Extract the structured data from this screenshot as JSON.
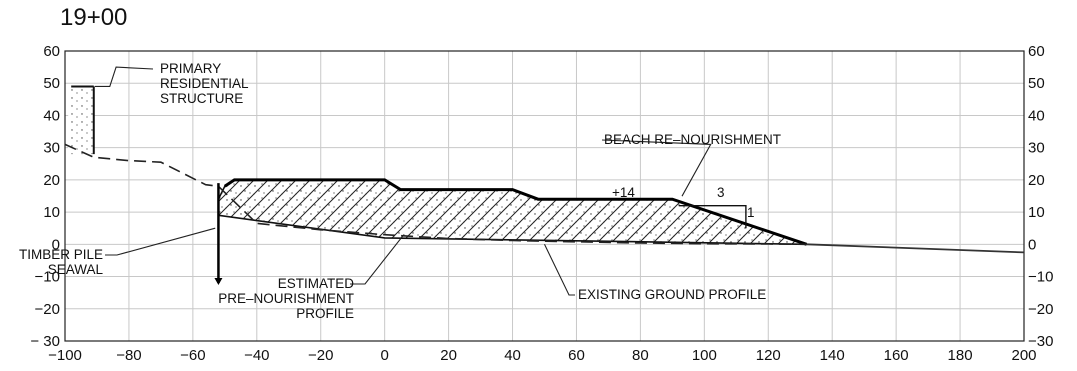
{
  "station_label": "19+00",
  "chart_data": {
    "type": "line",
    "title": "19+00",
    "xlim": [
      -100,
      200
    ],
    "ylim": [
      -30,
      60
    ],
    "x_ticks": [
      "−100",
      "−80",
      "−60",
      "−40",
      "−20",
      "0",
      "20",
      "40",
      "60",
      "80",
      "100",
      "120",
      "140",
      "160",
      "180",
      "200"
    ],
    "y_ticks_left": [
      "60",
      "50",
      "40",
      "30",
      "20",
      "10",
      "0",
      "−10",
      "−20",
      "− 30"
    ],
    "y_ticks_right": [
      "60",
      "50",
      "40",
      "30",
      "20",
      "10",
      "0",
      "−10",
      "−20",
      "−30"
    ],
    "grid": true,
    "series": [
      {
        "name": "EXISTING GROUND PROFILE",
        "style": "solid",
        "x": [
          132,
          200
        ],
        "y": [
          0,
          -2.5
        ]
      },
      {
        "name": "ESTIMATED PRE-NOURISHMENT PROFILE",
        "style": "dashed",
        "x": [
          -100,
          -91,
          -80,
          -70,
          -60,
          -56,
          -52,
          -40,
          -20,
          0,
          20,
          40,
          60,
          80,
          100,
          120,
          132
        ],
        "y": [
          31,
          27,
          26,
          25.5,
          20.5,
          18.5,
          18,
          6.5,
          4.5,
          3,
          1.8,
          1.2,
          0.8,
          0.4,
          0.2,
          0.1,
          0
        ]
      },
      {
        "name": "BEACH RE-NOURISHMENT",
        "style": "hatched",
        "x": [
          -52,
          -50,
          -47,
          0,
          5,
          40,
          48,
          90,
          132,
          0,
          -52
        ],
        "y": [
          14,
          18,
          20,
          20,
          17,
          17,
          14,
          14,
          0,
          2,
          9
        ]
      },
      {
        "name": "TIMBER PILE SEAWAL",
        "style": "pile",
        "x": [
          -52,
          -52
        ],
        "y": [
          19,
          -12
        ]
      },
      {
        "name": "PRIMARY RESIDENTIAL STRUCTURE",
        "style": "structure",
        "x": [
          -99,
          -91
        ],
        "y": [
          49,
          28
        ]
      }
    ],
    "annotations": {
      "primary_structure": "PRIMARY\nRESIDENTIAL\nSTRUCTURE",
      "beach_renourishment": "BEACH RE–NOURISHMENT",
      "crest_elevation": "+14",
      "slope_run": "3",
      "slope_rise": "1",
      "timber_pile": "TIMBER PILE\nSEAWAL",
      "estimated_profile": "ESTIMATED\nPRE–NOURISHMENT\nPROFILE",
      "existing_ground": "EXISTING GROUND PROFILE"
    }
  }
}
